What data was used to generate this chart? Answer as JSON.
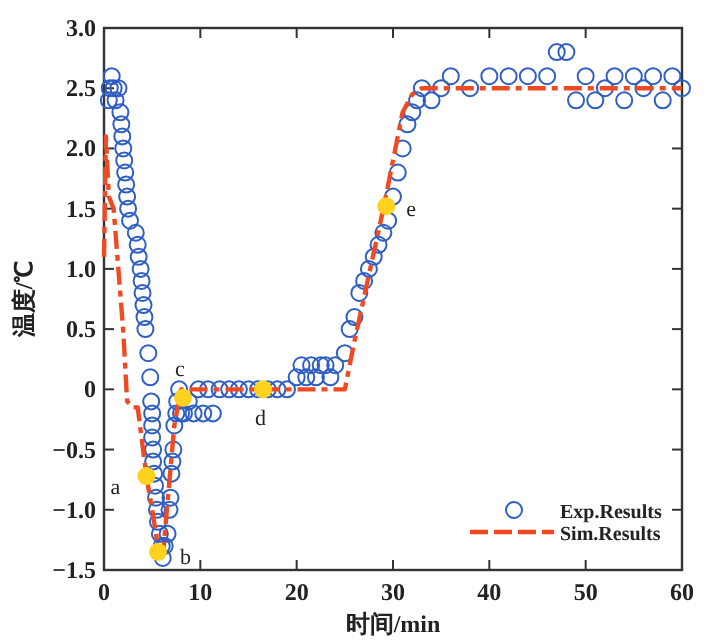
{
  "chart_data": {
    "type": "scatter",
    "xlabel": "时间/min",
    "ylabel": "温度/℃",
    "xlim": [
      0,
      60
    ],
    "ylim": [
      -1.5,
      3
    ],
    "xticks": [
      0,
      10,
      20,
      30,
      40,
      50,
      60
    ],
    "yticks": [
      {
        "value": -1.5,
        "label": "−1.5"
      },
      {
        "value": -1,
        "label": "−1.0"
      },
      {
        "value": -0.5,
        "label": "−0.5"
      },
      0,
      {
        "value": 0.5,
        "label": "0.5"
      },
      {
        "value": 1,
        "label": "1.0"
      },
      {
        "value": 1.5,
        "label": "1.5"
      },
      {
        "value": 2,
        "label": "2.0"
      },
      {
        "value": 2.5,
        "label": "2.5"
      },
      {
        "value": 3,
        "label": "3.0"
      }
    ],
    "legend": "bottom right",
    "grid": false,
    "series": [
      {
        "name": "Exp.Results",
        "marker": "circle",
        "color": "#2f5fc4",
        "x": [
          0.5,
          0.6,
          0.8,
          1.0,
          1.2,
          1.5,
          1.7,
          1.8,
          1.9,
          2.0,
          2.1,
          2.2,
          2.3,
          2.4,
          2.5,
          2.7,
          3.3,
          3.5,
          3.6,
          3.8,
          3.9,
          4.0,
          4.1,
          4.2,
          4.3,
          4.6,
          4.8,
          4.9,
          5.0,
          5.0,
          5.0,
          5.1,
          5.1,
          5.2,
          5.3,
          5.4,
          5.5,
          5.6,
          5.8,
          6.0,
          6.1,
          6.3,
          6.6,
          6.8,
          6.9,
          7.0,
          7.1,
          7.2,
          7.3,
          7.5,
          7.6,
          7.8,
          8.0,
          8.3,
          8.8,
          9.3,
          9.8,
          10.3,
          10.8,
          11.3,
          12,
          13,
          14,
          15,
          16,
          17,
          18,
          19,
          20,
          20.5,
          21,
          21.5,
          22,
          22.5,
          23,
          23.5,
          24,
          25,
          25.5,
          26,
          26.5,
          27,
          27.5,
          28,
          28.5,
          29,
          29.5,
          30,
          30.5,
          31,
          31.5,
          32,
          32.5,
          33,
          34,
          35,
          36,
          38,
          40,
          42,
          44,
          46,
          47,
          48,
          49,
          50,
          51,
          52,
          53,
          54,
          55,
          56,
          57,
          58,
          59,
          60
        ],
        "values": [
          2.4,
          2.5,
          2.6,
          2.5,
          2.4,
          2.5,
          2.3,
          2.2,
          2.1,
          2.0,
          1.9,
          1.8,
          1.7,
          1.6,
          1.5,
          1.4,
          1.3,
          1.2,
          1.1,
          1.0,
          0.9,
          0.8,
          0.7,
          0.6,
          0.5,
          0.3,
          0.1,
          -0.1,
          -0.2,
          -0.3,
          -0.4,
          -0.5,
          -0.6,
          -0.7,
          -0.8,
          -0.9,
          -1.0,
          -1.1,
          -1.2,
          -1.3,
          -1.4,
          -1.3,
          -1.2,
          -1.0,
          -0.9,
          -0.7,
          -0.6,
          -0.5,
          -0.3,
          -0.2,
          -0.1,
          0.0,
          -0.2,
          -0.2,
          -0.1,
          -0.2,
          0.0,
          -0.2,
          0.0,
          -0.2,
          0.0,
          0.0,
          0.0,
          0.0,
          0.0,
          0.0,
          0.0,
          0.0,
          0.1,
          0.2,
          0.1,
          0.2,
          0.1,
          0.2,
          0.2,
          0.1,
          0.2,
          0.3,
          0.5,
          0.6,
          0.8,
          0.9,
          1.0,
          1.1,
          1.2,
          1.3,
          1.4,
          1.6,
          1.8,
          2.0,
          2.2,
          2.3,
          2.4,
          2.5,
          2.4,
          2.5,
          2.6,
          2.5,
          2.6,
          2.6,
          2.6,
          2.6,
          2.8,
          2.8,
          2.4,
          2.6,
          2.4,
          2.5,
          2.6,
          2.4,
          2.6,
          2.5,
          2.6,
          2.4,
          2.6,
          2.5
        ]
      },
      {
        "name": "Sim.Results",
        "type": "line",
        "line_style": "dashed",
        "color": "#f04a23",
        "x": [
          0,
          0.2,
          0.5,
          1,
          2,
          2.4,
          3,
          3.5,
          4.4,
          5,
          5.7,
          6.2,
          7.3,
          8,
          25,
          26,
          29,
          31,
          32,
          33,
          60
        ],
        "values": [
          1.1,
          2.1,
          1.6,
          1.5,
          0.48,
          -0.1,
          -0.15,
          -0.15,
          -0.72,
          -1.0,
          -1.35,
          -1.3,
          -0.3,
          0,
          0,
          0.4,
          1.5,
          2.3,
          2.45,
          2.5,
          2.5
        ]
      },
      {
        "marker": "circle",
        "color": "#ffd21f",
        "x": [
          4.4,
          5.6,
          8.2,
          16.5,
          29.3
        ],
        "values": [
          -0.72,
          -1.35,
          -0.07,
          0,
          1.52
        ]
      }
    ],
    "annotations": [
      {
        "text": "a",
        "x": 4.4,
        "y": -0.72
      },
      {
        "text": "b",
        "x": 5.6,
        "y": -1.35
      },
      {
        "text": "c",
        "x": 8.2,
        "y": -0.07
      },
      {
        "text": "d",
        "x": 16.5,
        "y": 0
      },
      {
        "text": "e",
        "x": 29.3,
        "y": 1.52
      }
    ]
  }
}
